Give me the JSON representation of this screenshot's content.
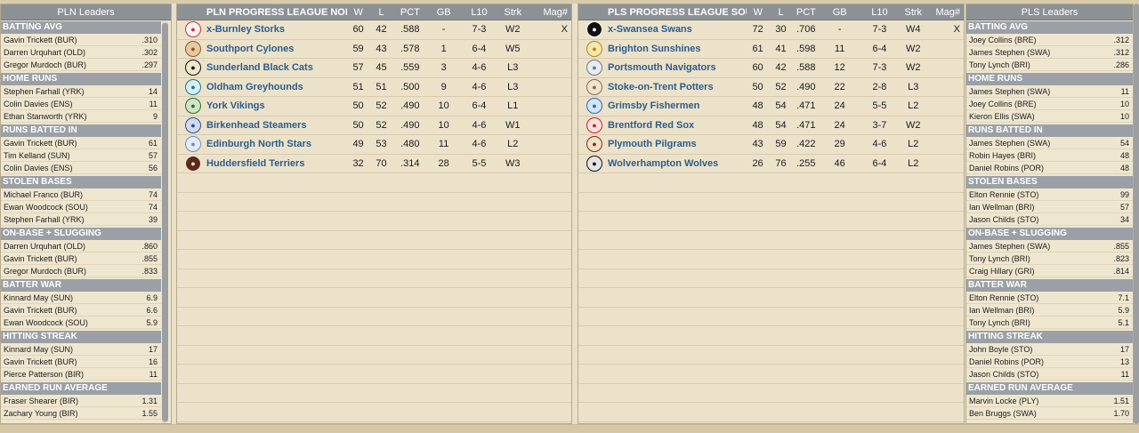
{
  "pln_leaders": {
    "title": "PLN Leaders",
    "categories": [
      {
        "name": "BATTING AVG",
        "rows": [
          {
            "player": "Gavin Trickett (BUR)",
            "value": ".310"
          },
          {
            "player": "Darren Urquhart (OLD)",
            "value": ".302"
          },
          {
            "player": "Gregor Murdoch (BUR)",
            "value": ".297"
          }
        ]
      },
      {
        "name": "HOME RUNS",
        "rows": [
          {
            "player": "Stephen Farhall (YRK)",
            "value": "14"
          },
          {
            "player": "Colin Davies (ENS)",
            "value": "11"
          },
          {
            "player": "Ethan Stanworth (YRK)",
            "value": "9"
          }
        ]
      },
      {
        "name": "RUNS BATTED IN",
        "rows": [
          {
            "player": "Gavin Trickett (BUR)",
            "value": "61"
          },
          {
            "player": "Tim Kelland (SUN)",
            "value": "57"
          },
          {
            "player": "Colin Davies (ENS)",
            "value": "56"
          }
        ]
      },
      {
        "name": "STOLEN BASES",
        "rows": [
          {
            "player": "Michael Franco (BUR)",
            "value": "74"
          },
          {
            "player": "Ewan Woodcock (SOU)",
            "value": "74"
          },
          {
            "player": "Stephen Farhall (YRK)",
            "value": "39"
          }
        ]
      },
      {
        "name": "ON-BASE + SLUGGING",
        "rows": [
          {
            "player": "Darren Urquhart (OLD)",
            "value": ".860"
          },
          {
            "player": "Gavin Trickett (BUR)",
            "value": ".855"
          },
          {
            "player": "Gregor Murdoch (BUR)",
            "value": ".833"
          }
        ]
      },
      {
        "name": "BATTER WAR",
        "rows": [
          {
            "player": "Kinnard May (SUN)",
            "value": "6.9"
          },
          {
            "player": "Gavin Trickett (BUR)",
            "value": "6.6"
          },
          {
            "player": "Ewan Woodcock (SOU)",
            "value": "5.9"
          }
        ]
      },
      {
        "name": "HITTING STREAK",
        "rows": [
          {
            "player": "Kinnard May (SUN)",
            "value": "17"
          },
          {
            "player": "Gavin Trickett (BUR)",
            "value": "16"
          },
          {
            "player": "Pierce Patterson (BIR)",
            "value": "11"
          }
        ]
      },
      {
        "name": "EARNED RUN AVERAGE",
        "rows": [
          {
            "player": "Fraser Shearer (BIR)",
            "value": "1.31"
          },
          {
            "player": "Zachary Young (BIR)",
            "value": "1.55"
          }
        ]
      }
    ]
  },
  "pls_leaders": {
    "title": "PLS Leaders",
    "categories": [
      {
        "name": "BATTING AVG",
        "rows": [
          {
            "player": "Joey Collins (BRE)",
            "value": ".312"
          },
          {
            "player": "James Stephen (SWA)",
            "value": ".312"
          },
          {
            "player": "Tony Lynch (BRI)",
            "value": ".286"
          }
        ]
      },
      {
        "name": "HOME RUNS",
        "rows": [
          {
            "player": "James Stephen (SWA)",
            "value": "11"
          },
          {
            "player": "Joey Collins (BRE)",
            "value": "10"
          },
          {
            "player": "Kieron Ellis (SWA)",
            "value": "10"
          }
        ]
      },
      {
        "name": "RUNS BATTED IN",
        "rows": [
          {
            "player": "James Stephen (SWA)",
            "value": "54"
          },
          {
            "player": "Robin Hayes (BRI)",
            "value": "48"
          },
          {
            "player": "Daniel Robins (POR)",
            "value": "48"
          }
        ]
      },
      {
        "name": "STOLEN BASES",
        "rows": [
          {
            "player": "Elton Rennie (STO)",
            "value": "99"
          },
          {
            "player": "Ian Wellman (BRI)",
            "value": "57"
          },
          {
            "player": "Jason Childs (STO)",
            "value": "34"
          }
        ]
      },
      {
        "name": "ON-BASE + SLUGGING",
        "rows": [
          {
            "player": "James Stephen (SWA)",
            "value": ".855"
          },
          {
            "player": "Tony Lynch (BRI)",
            "value": ".823"
          },
          {
            "player": "Craig Hillary (GRI)",
            "value": ".814"
          }
        ]
      },
      {
        "name": "BATTER WAR",
        "rows": [
          {
            "player": "Elton Rennie (STO)",
            "value": "7.1"
          },
          {
            "player": "Ian Wellman (BRI)",
            "value": "5.9"
          },
          {
            "player": "Tony Lynch (BRI)",
            "value": "5.1"
          }
        ]
      },
      {
        "name": "HITTING STREAK",
        "rows": [
          {
            "player": "John Boyle (STO)",
            "value": "17"
          },
          {
            "player": "Daniel Robins (POR)",
            "value": "13"
          },
          {
            "player": "Jason Childs (STO)",
            "value": "11"
          }
        ]
      },
      {
        "name": "EARNED RUN AVERAGE",
        "rows": [
          {
            "player": "Marvin Locke (PLY)",
            "value": "1.51"
          },
          {
            "player": "Ben Bruggs (SWA)",
            "value": "1.70"
          }
        ]
      }
    ]
  },
  "pln_standings": {
    "title": "PLN PROGRESS LEAGUE NORTH",
    "columns": {
      "w": "W",
      "l": "L",
      "pct": "PCT",
      "gb": "GB",
      "l10": "L10",
      "strk": "Strk",
      "mag": "Mag#"
    },
    "teams": [
      {
        "name": "x-Burnley Storks",
        "w": "60",
        "l": "42",
        "pct": ".588",
        "gb": "-",
        "l10": "7-3",
        "strk": "W2",
        "mag": "X",
        "logo_color": "#c33",
        "logo_bg": "#f4f4f4",
        "icon": "stork-logo-icon"
      },
      {
        "name": "Southport Cylones",
        "w": "59",
        "l": "43",
        "pct": ".578",
        "gb": "1",
        "l10": "6-4",
        "strk": "W5",
        "mag": "",
        "logo_color": "#8a5a2a",
        "logo_bg": "#e7c9a0",
        "icon": "cyclone-logo-icon"
      },
      {
        "name": "Sunderland Black Cats",
        "w": "57",
        "l": "45",
        "pct": ".559",
        "gb": "3",
        "l10": "4-6",
        "strk": "L3",
        "mag": "",
        "logo_color": "#111",
        "logo_bg": "#f0e6cc",
        "icon": "black-cat-logo-icon"
      },
      {
        "name": "Oldham Greyhounds",
        "w": "51",
        "l": "51",
        "pct": ".500",
        "gb": "9",
        "l10": "4-6",
        "strk": "L3",
        "mag": "",
        "logo_color": "#1e7a8c",
        "logo_bg": "#d8eef2",
        "icon": "greyhound-logo-icon"
      },
      {
        "name": "York Vikings",
        "w": "50",
        "l": "52",
        "pct": ".490",
        "gb": "10",
        "l10": "6-4",
        "strk": "L1",
        "mag": "",
        "logo_color": "#2d6a2d",
        "logo_bg": "#cfe3c8",
        "icon": "viking-logo-icon"
      },
      {
        "name": "Birkenhead Steamers",
        "w": "50",
        "l": "52",
        "pct": ".490",
        "gb": "10",
        "l10": "4-6",
        "strk": "W1",
        "mag": "",
        "logo_color": "#2d4f8c",
        "logo_bg": "#cfdaf0",
        "icon": "steamer-logo-icon"
      },
      {
        "name": "Edinburgh North Stars",
        "w": "49",
        "l": "53",
        "pct": ".480",
        "gb": "11",
        "l10": "4-6",
        "strk": "L2",
        "mag": "",
        "logo_color": "#6a8fb8",
        "logo_bg": "#e4edf7",
        "icon": "north-star-logo-icon"
      },
      {
        "name": "Huddersfield Terriers",
        "w": "32",
        "l": "70",
        "pct": ".314",
        "gb": "28",
        "l10": "5-5",
        "strk": "W3",
        "mag": "",
        "logo_color": "#f4e6d2",
        "logo_bg": "#5a2a1a",
        "icon": "terrier-logo-icon"
      }
    ]
  },
  "pls_standings": {
    "title": "PLS PROGRESS LEAGUE SOUTH",
    "columns": {
      "w": "W",
      "l": "L",
      "pct": "PCT",
      "gb": "GB",
      "l10": "L10",
      "strk": "Strk",
      "mag": "Mag#"
    },
    "teams": [
      {
        "name": "x-Swansea Swans",
        "w": "72",
        "l": "30",
        "pct": ".706",
        "gb": "-",
        "l10": "7-3",
        "strk": "W4",
        "mag": "X",
        "logo_color": "#ffffff",
        "logo_bg": "#111111",
        "icon": "swan-logo-icon"
      },
      {
        "name": "Brighton Sunshines",
        "w": "61",
        "l": "41",
        "pct": ".598",
        "gb": "11",
        "l10": "6-4",
        "strk": "W2",
        "mag": "",
        "logo_color": "#b8860b",
        "logo_bg": "#f6e7b0",
        "icon": "sun-logo-icon"
      },
      {
        "name": "Portsmouth Navigators",
        "w": "60",
        "l": "42",
        "pct": ".588",
        "gb": "12",
        "l10": "7-3",
        "strk": "W2",
        "mag": "",
        "logo_color": "#6a7a8c",
        "logo_bg": "#e8ecf0",
        "icon": "compass-logo-icon"
      },
      {
        "name": "Stoke-on-Trent Potters",
        "w": "50",
        "l": "52",
        "pct": ".490",
        "gb": "22",
        "l10": "2-8",
        "strk": "L3",
        "mag": "",
        "logo_color": "#8a6a4a",
        "logo_bg": "#f0e4d0",
        "icon": "pottery-logo-icon"
      },
      {
        "name": "Grimsby Fishermen",
        "w": "48",
        "l": "54",
        "pct": ".471",
        "gb": "24",
        "l10": "5-5",
        "strk": "L2",
        "mag": "",
        "logo_color": "#2a6ab8",
        "logo_bg": "#d4e4f6",
        "icon": "fish-logo-icon"
      },
      {
        "name": "Brentford Red Sox",
        "w": "48",
        "l": "54",
        "pct": ".471",
        "gb": "24",
        "l10": "3-7",
        "strk": "W2",
        "mag": "",
        "logo_color": "#cc2222",
        "logo_bg": "#f8e0e0",
        "icon": "red-sock-logo-icon"
      },
      {
        "name": "Plymouth Pilgrams",
        "w": "43",
        "l": "59",
        "pct": ".422",
        "gb": "29",
        "l10": "4-6",
        "strk": "L2",
        "mag": "",
        "logo_color": "#8a2a1a",
        "logo_bg": "#efe0c8",
        "icon": "pilgrim-hat-logo-icon"
      },
      {
        "name": "Wolverhampton Wolves",
        "w": "26",
        "l": "76",
        "pct": ".255",
        "gb": "46",
        "l10": "6-4",
        "strk": "L2",
        "mag": "",
        "logo_color": "#111111",
        "logo_bg": "#e4e4e4",
        "icon": "wolf-logo-icon"
      }
    ]
  },
  "colors": {
    "background": "#eae0c8",
    "header_gray": "#8c9196",
    "category_gray": "#9aa0a6",
    "team_link": "#2c5c8c"
  }
}
